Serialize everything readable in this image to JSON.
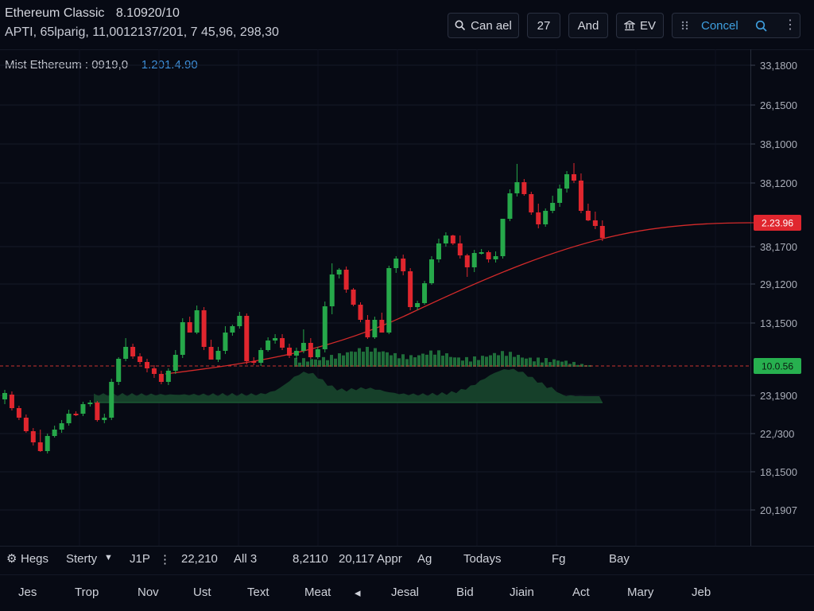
{
  "header": {
    "symbol": "Ethereum Classic",
    "price": "8.10920/10",
    "subtitle": "APTI, 65lparig, 11,0012137/201, 7 45,96, 298,30"
  },
  "toolbar": {
    "cancel_label": "Can ael",
    "count_label": "27",
    "and_label": "And",
    "ev_label": "EV",
    "search_label": "Concel",
    "accent": "#3fa0e0"
  },
  "legend": {
    "label": "Mist Ethereum : 0919,0",
    "value": "1.201.4.90"
  },
  "chart_data": {
    "type": "candlestick",
    "y_ticks": [
      "33,1800",
      "26,1500",
      "38,1000",
      "38,1200",
      "38,1700",
      "29,1200",
      "13,1500",
      "23,1900",
      "22,/300",
      "18,1500",
      "20,1907"
    ],
    "price_badge": "2.23.96",
    "level_badge": "10.0.56",
    "colors": {
      "up": "#26a84a",
      "down": "#e0262e",
      "ma": "#d42a2a",
      "volume": "#1f6e3a",
      "grid": "#161b28"
    },
    "candles": [
      [
        502,
        494,
        508,
        490
      ],
      [
        496,
        513,
        516,
        492
      ],
      [
        513,
        525,
        528,
        510
      ],
      [
        525,
        542,
        544,
        521
      ],
      [
        542,
        556,
        560,
        538
      ],
      [
        556,
        567,
        568,
        540
      ],
      [
        567,
        548,
        570,
        545
      ],
      [
        548,
        540,
        550,
        535
      ],
      [
        540,
        532,
        544,
        528
      ],
      [
        532,
        520,
        535,
        515
      ],
      [
        520,
        520,
        523,
        517
      ],
      [
        520,
        508,
        523,
        505
      ],
      [
        508,
        506,
        511,
        503
      ],
      [
        506,
        528,
        530,
        504
      ],
      [
        528,
        525,
        532,
        520
      ],
      [
        525,
        480,
        528,
        476
      ],
      [
        480,
        451,
        484,
        449
      ],
      [
        451,
        436,
        454,
        425
      ],
      [
        436,
        448,
        451,
        432
      ],
      [
        448,
        455,
        458,
        444
      ],
      [
        455,
        463,
        468,
        451
      ],
      [
        463,
        470,
        475,
        459
      ],
      [
        470,
        480,
        483,
        466
      ],
      [
        480,
        466,
        484,
        463
      ],
      [
        466,
        446,
        470,
        440
      ],
      [
        446,
        405,
        450,
        400
      ],
      [
        405,
        418,
        418,
        398
      ],
      [
        418,
        390,
        420,
        384
      ],
      [
        390,
        436,
        440,
        386
      ],
      [
        436,
        452,
        452,
        427
      ],
      [
        452,
        441,
        455,
        436
      ],
      [
        441,
        418,
        445,
        410
      ],
      [
        418,
        410,
        422,
        408
      ],
      [
        410,
        397,
        413,
        392
      ],
      [
        397,
        454,
        458,
        394
      ],
      [
        454,
        456,
        459,
        449
      ],
      [
        456,
        440,
        460,
        437
      ],
      [
        440,
        428,
        442,
        424
      ],
      [
        428,
        425,
        432,
        420
      ],
      [
        425,
        437,
        440,
        420
      ],
      [
        437,
        447,
        450,
        432
      ],
      [
        447,
        441,
        451,
        437
      ],
      [
        441,
        431,
        444,
        414
      ],
      [
        431,
        449,
        451,
        425
      ],
      [
        449,
        439,
        451,
        436
      ],
      [
        439,
        385,
        443,
        379
      ],
      [
        385,
        345,
        395,
        331
      ],
      [
        345,
        339,
        350,
        337
      ],
      [
        339,
        364,
        368,
        335
      ],
      [
        364,
        383,
        385,
        362
      ],
      [
        383,
        402,
        405,
        380
      ],
      [
        402,
        424,
        426,
        396
      ],
      [
        424,
        402,
        426,
        398
      ],
      [
        402,
        418,
        418,
        393
      ],
      [
        418,
        337,
        420,
        334
      ],
      [
        337,
        325,
        343,
        322
      ],
      [
        325,
        341,
        346,
        320
      ],
      [
        341,
        386,
        390,
        337
      ],
      [
        386,
        381,
        390,
        378
      ],
      [
        381,
        356,
        383,
        353
      ],
      [
        356,
        326,
        358,
        322
      ],
      [
        326,
        306,
        330,
        300
      ],
      [
        306,
        296,
        310,
        292
      ],
      [
        296,
        306,
        308,
        295
      ],
      [
        306,
        321,
        325,
        296
      ],
      [
        321,
        336,
        348,
        319
      ],
      [
        336,
        318,
        342,
        314
      ],
      [
        318,
        317,
        320,
        313
      ],
      [
        317,
        326,
        330,
        315
      ],
      [
        326,
        322,
        330,
        316
      ],
      [
        322,
        275,
        325,
        275
      ],
      [
        275,
        243,
        278,
        238
      ],
      [
        243,
        229,
        247,
        206
      ],
      [
        229,
        244,
        246,
        225
      ],
      [
        244,
        267,
        270,
        241
      ],
      [
        267,
        282,
        287,
        256
      ],
      [
        282,
        265,
        285,
        262
      ],
      [
        265,
        255,
        268,
        246
      ],
      [
        255,
        237,
        260,
        232
      ],
      [
        237,
        219,
        242,
        215
      ],
      [
        219,
        227,
        230,
        205
      ],
      [
        227,
        265,
        268,
        218
      ],
      [
        265,
        277,
        278,
        256
      ],
      [
        277,
        284,
        288,
        266
      ],
      [
        284,
        299,
        303,
        277
      ]
    ]
  },
  "bottom": {
    "row1": [
      "Hegs",
      "Sterty",
      "J1P",
      "22,210",
      "All 3",
      "8,2110",
      "20,117",
      "Appr",
      "Ag",
      "Todays",
      "Fg",
      "Bay"
    ],
    "row2": [
      "Jes",
      "Trop",
      "Nov",
      "Ust",
      "Text",
      "Meat",
      "Jesal",
      "Bid",
      "Jiain",
      "Act",
      "Mary",
      "Jeb"
    ]
  }
}
